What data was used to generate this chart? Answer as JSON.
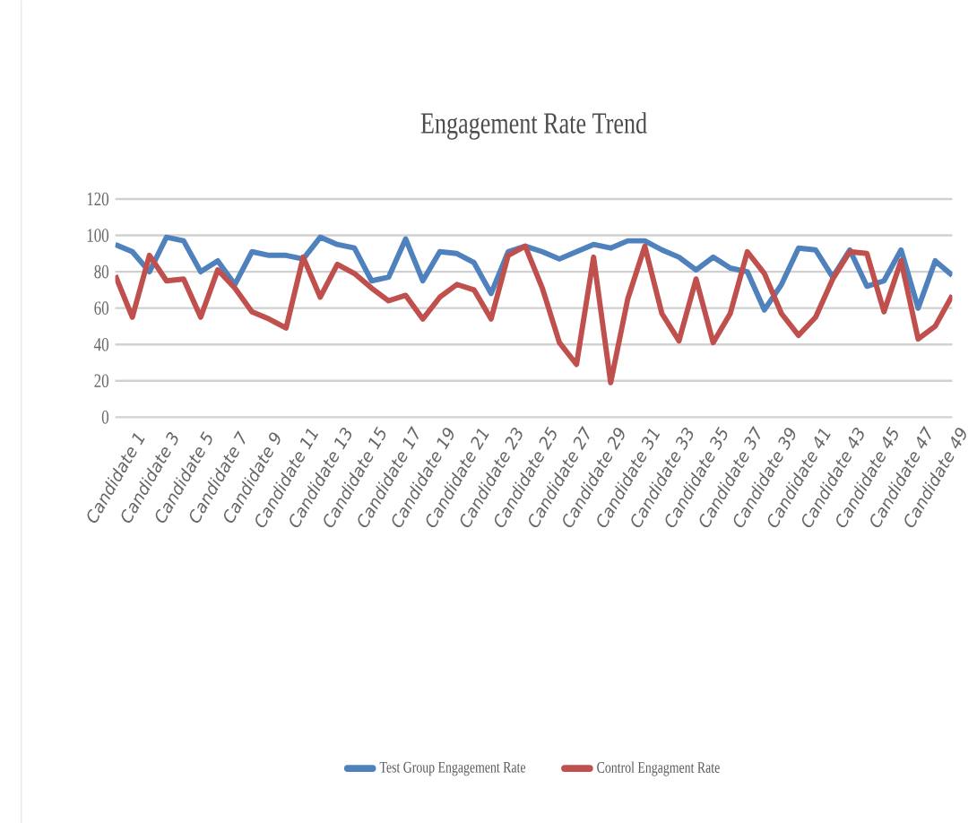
{
  "chart_data": {
    "type": "line",
    "title": "Engagement Rate Trend",
    "categories": [
      "Candidate 1",
      null,
      "Candidate 3",
      null,
      "Candidate 5",
      null,
      "Candidate 7",
      null,
      "Candidate 9",
      null,
      "Candidate 11",
      null,
      "Candidate 13",
      null,
      "Candidate 15",
      null,
      "Candidate 17",
      null,
      "Candidate 19",
      null,
      "Candidate 21",
      null,
      "Candidate 23",
      null,
      "Candidate 25",
      null,
      "Candidate 27",
      null,
      "Candidate 29",
      null,
      "Candidate 31",
      null,
      "Candidate 33",
      null,
      "Candidate 35",
      null,
      "Candidate 37",
      null,
      "Candidate 39",
      null,
      "Candidate 41",
      null,
      "Candidate 43",
      null,
      "Candidate 45",
      null,
      "Candidate 47",
      null,
      "Candidate 49",
      null
    ],
    "series": [
      {
        "name": "Test Group Engagement Rate",
        "color": "#4f81bd",
        "values": [
          95,
          91,
          80,
          99,
          97,
          80,
          86,
          73,
          91,
          89,
          89,
          87,
          99,
          95,
          93,
          75,
          77,
          98,
          75,
          91,
          90,
          85,
          68,
          91,
          94,
          91,
          87,
          91,
          95,
          93,
          97,
          97,
          92,
          88,
          81,
          88,
          82,
          80,
          59,
          73,
          93,
          92,
          77,
          92,
          72,
          75,
          92,
          60,
          86,
          78
        ]
      },
      {
        "name": "Control Engagment Rate",
        "color": "#c0504d",
        "values": [
          78,
          55,
          89,
          75,
          76,
          55,
          81,
          71,
          58,
          54,
          49,
          88,
          66,
          84,
          79,
          71,
          64,
          67,
          54,
          66,
          73,
          70,
          54,
          89,
          94,
          71,
          41,
          29,
          88,
          19,
          65,
          94,
          57,
          42,
          76,
          41,
          57,
          91,
          79,
          57,
          45,
          55,
          76,
          91,
          90,
          58,
          86,
          43,
          50,
          67
        ]
      }
    ],
    "ylim": [
      0,
      120
    ],
    "yticks": [
      0,
      20,
      40,
      60,
      80,
      100,
      120
    ],
    "grid": "y",
    "legend": "bottom",
    "marker": "none",
    "line_style": "solid"
  }
}
